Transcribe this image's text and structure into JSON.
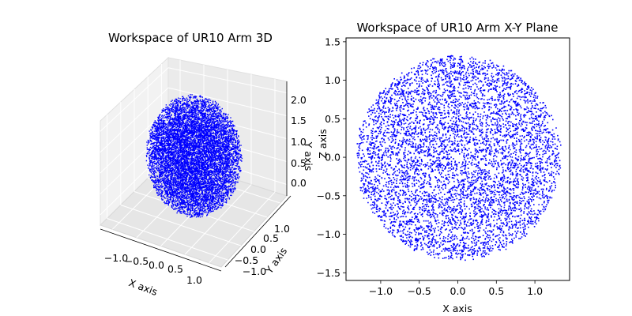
{
  "chart_data": [
    {
      "type": "scatter3d",
      "title": "Workspace of UR10 Arm 3D",
      "xlabel": "X axis",
      "ylabel": "Y axis",
      "zlabel": "Y axis",
      "x_ticks": [
        "−1.0",
        "−0.5",
        "0.0",
        "0.5",
        "1.0"
      ],
      "y_ticks": [
        "−1.0",
        "−0.5",
        "0.0",
        "0.5",
        "1.0"
      ],
      "z_ticks": [
        "0.0",
        "0.5",
        "1.0",
        "1.5",
        "2.0"
      ],
      "xlim": [
        -1.3,
        1.3
      ],
      "ylim": [
        -1.3,
        1.3
      ],
      "zlim": [
        -0.3,
        2.2
      ],
      "grid": true,
      "point_color": "#0000ff",
      "point_count": 9000,
      "point_cloud_center": [
        0.0,
        0.0,
        0.45
      ],
      "point_cloud_radius": 1.3
    },
    {
      "type": "scatter",
      "title": "Workspace of UR10 Arm X-Y Plane",
      "xlabel": "X axis",
      "ylabel": "Z axis",
      "x_ticks": [
        "−1.0",
        "−0.5",
        "0.0",
        "0.5",
        "1.0"
      ],
      "y_ticks": [
        "−1.5",
        "−1.0",
        "−0.5",
        "0.0",
        "0.5",
        "1.0",
        "1.5"
      ],
      "xlim": [
        -1.45,
        1.45
      ],
      "ylim": [
        -1.6,
        1.55
      ],
      "grid": false,
      "point_color": "#0000ff",
      "point_count": 6000,
      "outer_radius": 1.32,
      "inner_radius": 0.07
    }
  ]
}
